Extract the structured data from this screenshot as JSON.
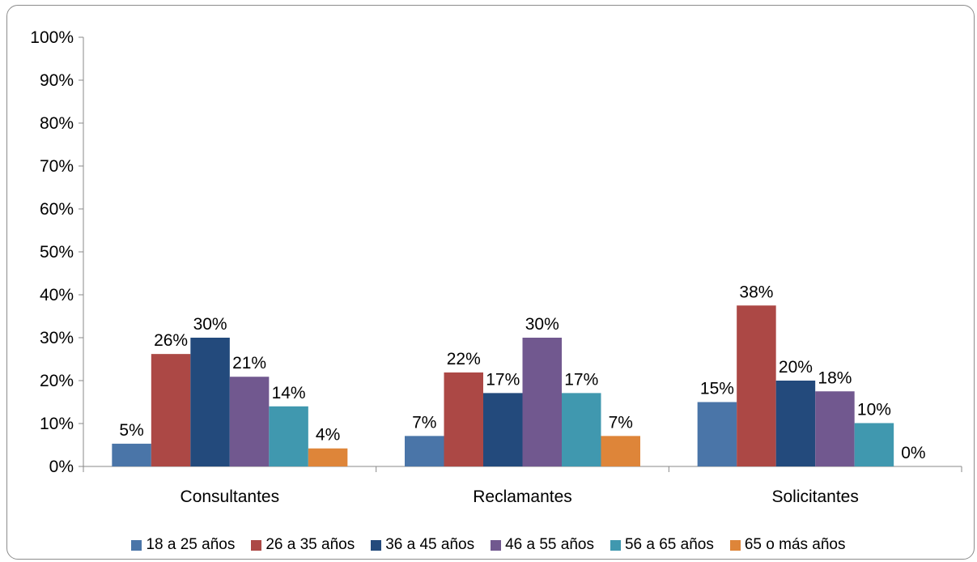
{
  "chart_data": {
    "type": "bar",
    "categories": [
      "Consultantes",
      "Reclamantes",
      "Solicitantes"
    ],
    "yticks": [
      "0%",
      "10%",
      "20%",
      "30%",
      "40%",
      "50%",
      "60%",
      "70%",
      "80%",
      "90%",
      "100%"
    ],
    "ylim": [
      0,
      100
    ],
    "grid": false,
    "legend_position": "bottom",
    "series": [
      {
        "name": "18 a 25 años",
        "color": "#4a75a8",
        "values": [
          5.3,
          7.1,
          15
        ],
        "labels": [
          "5%",
          "7%",
          "15%"
        ]
      },
      {
        "name": "26 a 35 años",
        "color": "#ac4845",
        "values": [
          26.2,
          21.9,
          37.5
        ],
        "labels": [
          "26%",
          "22%",
          "38%"
        ]
      },
      {
        "name": "36 a 45 años",
        "color": "#234a7c",
        "values": [
          30,
          17.1,
          20
        ],
        "labels": [
          "30%",
          "17%",
          "20%"
        ]
      },
      {
        "name": "46 a 55 años",
        "color": "#71588f",
        "values": [
          20.9,
          30,
          17.5
        ],
        "labels": [
          "21%",
          "30%",
          "18%"
        ]
      },
      {
        "name": "56 a 65 años",
        "color": "#4098af",
        "values": [
          14,
          17.1,
          10.1
        ],
        "labels": [
          "14%",
          "17%",
          "10%"
        ]
      },
      {
        "name": "65 o más años",
        "color": "#de8539",
        "values": [
          4.2,
          7.1,
          0
        ],
        "labels": [
          "4%",
          "7%",
          "0%"
        ]
      }
    ]
  }
}
